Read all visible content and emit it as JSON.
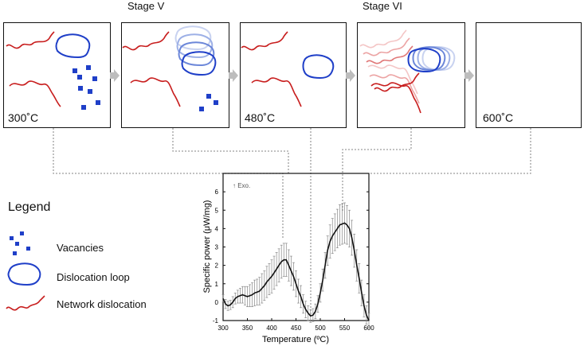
{
  "stages": {
    "stage5": "Stage V",
    "stage6": "Stage VI"
  },
  "panels": [
    {
      "id": "p300",
      "temperature_label": "300˚C"
    },
    {
      "id": "pStage5",
      "temperature_label": ""
    },
    {
      "id": "p480",
      "temperature_label": "480˚C"
    },
    {
      "id": "pStage6",
      "temperature_label": ""
    },
    {
      "id": "p600",
      "temperature_label": "600˚C"
    }
  ],
  "legend": {
    "title": "Legend",
    "items": [
      {
        "key": "vacancies",
        "label": "Vacancies"
      },
      {
        "key": "loop",
        "label": "Dislocation loop"
      },
      {
        "key": "network",
        "label": "Network dislocation"
      }
    ]
  },
  "colors": {
    "network": "#c81e1e",
    "loop": "#1f3fc8",
    "vacancy": "#1f3fc8",
    "arrow": "#bdbdbd",
    "dotted": "#9e9e9e"
  },
  "chart_data": {
    "type": "line",
    "annotation": "↑ Exo.",
    "xlabel": "Temperature (ºC)",
    "ylabel": "Specific power (μW/mg)",
    "xlim": [
      300,
      600
    ],
    "ylim": [
      -1,
      7
    ],
    "xticks": [
      300,
      350,
      400,
      450,
      500,
      550,
      600
    ],
    "yticks": [
      -1,
      0,
      1,
      2,
      3,
      4,
      5,
      6
    ],
    "series": [
      {
        "x": [
          300,
          305,
          310,
          315,
          320,
          325,
          330,
          335,
          340,
          345,
          350,
          355,
          360,
          365,
          370,
          375,
          380,
          385,
          390,
          395,
          400,
          405,
          410,
          415,
          420,
          425,
          430,
          435,
          440,
          445,
          450,
          455,
          460,
          465,
          470,
          475,
          480,
          485,
          490,
          495,
          500,
          505,
          510,
          515,
          520,
          525,
          530,
          535,
          540,
          545,
          550,
          555,
          560,
          565,
          570,
          575,
          580,
          585,
          590,
          595,
          600
        ],
        "y": [
          0.2,
          -0.1,
          -0.2,
          -0.15,
          0.0,
          0.2,
          0.3,
          0.35,
          0.4,
          0.35,
          0.3,
          0.35,
          0.4,
          0.5,
          0.55,
          0.6,
          0.75,
          0.9,
          1.1,
          1.25,
          1.4,
          1.6,
          1.8,
          2.0,
          2.2,
          2.3,
          2.3,
          2.0,
          1.7,
          1.4,
          1.0,
          0.6,
          0.3,
          -0.1,
          -0.4,
          -0.6,
          -0.75,
          -0.7,
          -0.5,
          -0.1,
          0.5,
          1.2,
          2.0,
          2.8,
          3.3,
          3.6,
          3.8,
          4.0,
          4.2,
          4.25,
          4.3,
          4.2,
          4.0,
          3.5,
          2.8,
          2.0,
          1.3,
          0.5,
          -0.2,
          -0.7,
          -1.0
        ]
      }
    ],
    "error": [
      0.2,
      0.25,
      0.25,
      0.25,
      0.3,
      0.3,
      0.35,
      0.4,
      0.45,
      0.5,
      0.55,
      0.6,
      0.65,
      0.7,
      0.7,
      0.75,
      0.8,
      0.8,
      0.85,
      0.85,
      0.9,
      0.9,
      0.9,
      0.9,
      0.9,
      0.9,
      0.9,
      0.85,
      0.8,
      0.75,
      0.7,
      0.65,
      0.6,
      0.5,
      0.45,
      0.4,
      0.35,
      0.35,
      0.4,
      0.45,
      0.5,
      0.6,
      0.7,
      0.8,
      0.9,
      0.95,
      1.0,
      1.05,
      1.1,
      1.1,
      1.1,
      1.05,
      1.0,
      0.95,
      0.9,
      0.85,
      0.8,
      0.7,
      0.6,
      0.5,
      0.4
    ]
  }
}
